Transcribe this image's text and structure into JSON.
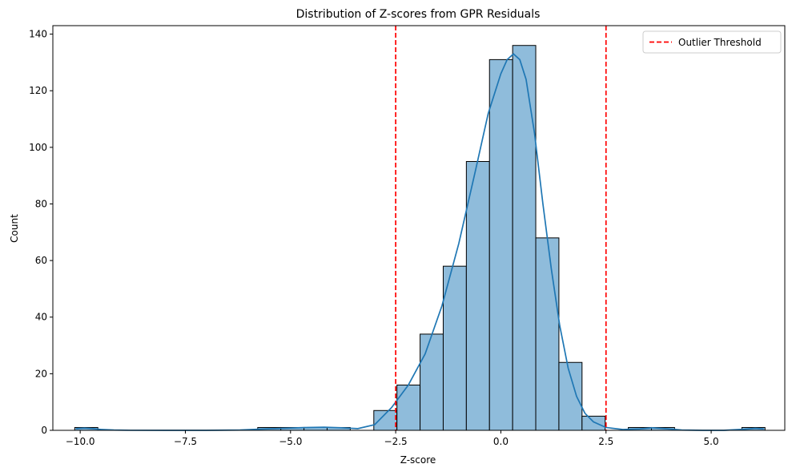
{
  "chart_data": {
    "type": "bar",
    "title": "Distribution of Z-scores from GPR Residuals",
    "xlabel": "Z-score",
    "ylabel": "Count",
    "xlim": [
      -10.65,
      6.75
    ],
    "ylim": [
      0,
      143
    ],
    "x_ticks": [
      -10.0,
      -7.5,
      -5.0,
      -2.5,
      0.0,
      2.5,
      5.0
    ],
    "x_tick_labels": [
      "−10.0",
      "−7.5",
      "−5.0",
      "−2.5",
      "0.0",
      "2.5",
      "5.0"
    ],
    "y_ticks": [
      0,
      20,
      40,
      60,
      80,
      100,
      120,
      140
    ],
    "y_tick_labels": [
      "0",
      "20",
      "40",
      "60",
      "80",
      "100",
      "120",
      "140"
    ],
    "bins": [
      {
        "x0": -10.13,
        "x1": -9.58,
        "count": 1
      },
      {
        "x0": -5.78,
        "x1": -5.23,
        "count": 1
      },
      {
        "x0": -5.23,
        "x1": -4.68,
        "count": 1
      },
      {
        "x0": -4.68,
        "x1": -4.13,
        "count": 1
      },
      {
        "x0": -4.13,
        "x1": -3.58,
        "count": 1
      },
      {
        "x0": -3.02,
        "x1": -2.47,
        "count": 7
      },
      {
        "x0": -2.47,
        "x1": -1.92,
        "count": 16
      },
      {
        "x0": -1.92,
        "x1": -1.37,
        "count": 34
      },
      {
        "x0": -1.37,
        "x1": -0.82,
        "count": 58
      },
      {
        "x0": -0.82,
        "x1": -0.27,
        "count": 95
      },
      {
        "x0": -0.27,
        "x1": 0.28,
        "count": 131
      },
      {
        "x0": 0.28,
        "x1": 0.83,
        "count": 136
      },
      {
        "x0": 0.83,
        "x1": 1.38,
        "count": 68
      },
      {
        "x0": 1.38,
        "x1": 1.93,
        "count": 24
      },
      {
        "x0": 1.93,
        "x1": 2.48,
        "count": 5
      },
      {
        "x0": 3.03,
        "x1": 3.58,
        "count": 1
      },
      {
        "x0": 3.58,
        "x1": 4.13,
        "count": 1
      },
      {
        "x0": 5.73,
        "x1": 6.28,
        "count": 1
      }
    ],
    "kde": {
      "x": [
        -10.1,
        -9.9,
        -9.7,
        -9.5,
        -9.2,
        -8.8,
        -8.0,
        -7.0,
        -6.2,
        -5.6,
        -5.0,
        -4.6,
        -4.2,
        -3.8,
        -3.4,
        -3.0,
        -2.6,
        -2.2,
        -1.8,
        -1.4,
        -1.0,
        -0.6,
        -0.3,
        0.0,
        0.15,
        0.3,
        0.45,
        0.6,
        0.8,
        1.0,
        1.2,
        1.4,
        1.6,
        1.8,
        2.0,
        2.2,
        2.5,
        2.9,
        3.3,
        3.6,
        3.9,
        4.3,
        4.8,
        5.3,
        5.8,
        6.05,
        6.25
      ],
      "y": [
        0.6,
        0.8,
        0.6,
        0.3,
        0.1,
        0.02,
        0.0,
        0.0,
        0.1,
        0.5,
        0.8,
        1.0,
        1.1,
        0.9,
        0.6,
        2.0,
        8.0,
        16.0,
        27.0,
        44.0,
        66.0,
        92.0,
        112.0,
        126.0,
        131.0,
        133.0,
        131.0,
        124.0,
        105.0,
        80.0,
        57.0,
        37.0,
        22.0,
        12.0,
        6.0,
        3.0,
        1.0,
        0.3,
        0.5,
        0.9,
        0.6,
        0.1,
        0.0,
        0.0,
        0.4,
        0.7,
        0.5
      ]
    },
    "threshold_lines": [
      -2.5,
      2.5
    ],
    "legend": {
      "placement": "top-right",
      "entries": [
        "Outlier Threshold"
      ]
    },
    "colors": {
      "bar_fill": "#8fbcdb",
      "bar_edge": "#000000",
      "kde": "#1f77b4",
      "threshold": "#ff0000"
    },
    "grid": false
  }
}
